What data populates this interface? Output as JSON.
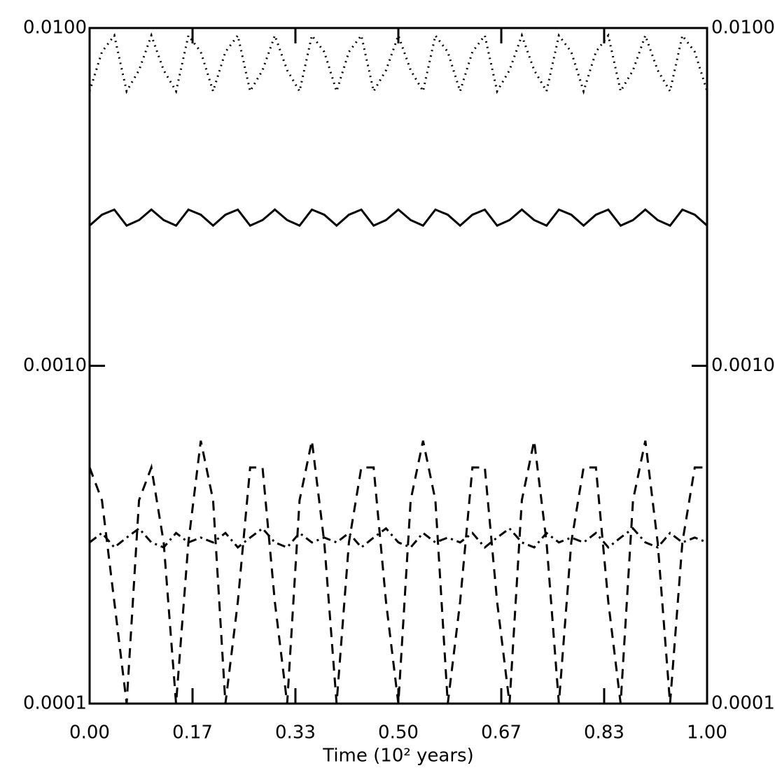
{
  "chart_data": {
    "type": "line",
    "xlabel": "Time (10² years)",
    "x": [
      0,
      0.02,
      0.04,
      0.06,
      0.08,
      0.1,
      0.12,
      0.14,
      0.16,
      0.18,
      0.2,
      0.22,
      0.24,
      0.26,
      0.28,
      0.3,
      0.32,
      0.34,
      0.36,
      0.38,
      0.4,
      0.42,
      0.44,
      0.46,
      0.48,
      0.5,
      0.52,
      0.54,
      0.56,
      0.58,
      0.6,
      0.62,
      0.64,
      0.66,
      0.68,
      0.7,
      0.72,
      0.74,
      0.76,
      0.78,
      0.8,
      0.82,
      0.84,
      0.86,
      0.88,
      0.9,
      0.92,
      0.94,
      0.96,
      0.98,
      1.0
    ],
    "xlim": [
      0,
      1
    ],
    "xticks": [
      {
        "value": 0,
        "label": "0.00"
      },
      {
        "value": 0.1667,
        "label": "0.17"
      },
      {
        "value": 0.3333,
        "label": "0.33"
      },
      {
        "value": 0.5,
        "label": "0.50"
      },
      {
        "value": 0.6667,
        "label": "0.67"
      },
      {
        "value": 0.8333,
        "label": "0.83"
      },
      {
        "value": 1,
        "label": "1.00"
      }
    ],
    "ylim": [
      0.0001,
      0.01
    ],
    "log_y": true,
    "yticks": [
      {
        "value": 0.0001,
        "label": "0.0001"
      },
      {
        "value": 0.001,
        "label": "0.0010"
      },
      {
        "value": 0.01,
        "label": "0.0100"
      }
    ],
    "y2lim": [
      0.0001,
      0.01
    ],
    "y2ticks": [
      {
        "value": 0.0001,
        "label": "0.0001"
      },
      {
        "value": 0.001,
        "label": "0.0010"
      },
      {
        "value": 0.01,
        "label": "0.0100"
      }
    ],
    "series": [
      {
        "color": "#000000",
        "dash": "dotted",
        "values": [
          0.0065,
          0.0085,
          0.0095,
          0.0065,
          0.0075,
          0.0095,
          0.0075,
          0.0065,
          0.0095,
          0.0085,
          0.0065,
          0.0085,
          0.0095,
          0.0065,
          0.0075,
          0.0095,
          0.0075,
          0.0065,
          0.0095,
          0.0085,
          0.0065,
          0.0085,
          0.0095,
          0.0065,
          0.0075,
          0.0095,
          0.0075,
          0.0065,
          0.0095,
          0.0085,
          0.0065,
          0.0085,
          0.0095,
          0.0065,
          0.0075,
          0.0095,
          0.0075,
          0.0065,
          0.0095,
          0.0085,
          0.0065,
          0.0085,
          0.0095,
          0.0065,
          0.0075,
          0.0095,
          0.0075,
          0.0065,
          0.0095,
          0.0085,
          0.0065
        ]
      },
      {
        "color": "#000000",
        "dash": "solid",
        "values": [
          0.0026,
          0.0028,
          0.0029,
          0.0026,
          0.0027,
          0.0029,
          0.0027,
          0.0026,
          0.0029,
          0.0028,
          0.0026,
          0.0028,
          0.0029,
          0.0026,
          0.0027,
          0.0029,
          0.0027,
          0.0026,
          0.0029,
          0.0028,
          0.0026,
          0.0028,
          0.0029,
          0.0026,
          0.0027,
          0.0029,
          0.0027,
          0.0026,
          0.0029,
          0.0028,
          0.0026,
          0.0028,
          0.0029,
          0.0026,
          0.0027,
          0.0029,
          0.0027,
          0.0026,
          0.0029,
          0.0028,
          0.0026,
          0.0028,
          0.0029,
          0.0026,
          0.0027,
          0.0029,
          0.0027,
          0.0026,
          0.0029,
          0.0028,
          0.0026
        ]
      },
      {
        "color": "#000000",
        "dash": "dashed",
        "values": [
          0.0005,
          0.0004,
          0.0002,
          0.0001,
          0.0004,
          0.0005,
          0.0003,
          0.0001,
          0.0003,
          0.0006,
          0.0004,
          0.0001,
          0.0002,
          0.0005,
          0.0005,
          0.0002,
          0.0001,
          0.0004,
          0.0006,
          0.0003,
          0.0001,
          0.0003,
          0.0005,
          0.0005,
          0.0002,
          0.0001,
          0.0004,
          0.0006,
          0.0004,
          0.0001,
          0.0002,
          0.0005,
          0.0005,
          0.0002,
          0.0001,
          0.0004,
          0.0006,
          0.0003,
          0.0001,
          0.0003,
          0.0005,
          0.0005,
          0.0002,
          0.0001,
          0.0004,
          0.0006,
          0.0003,
          0.0001,
          0.0003,
          0.0005,
          0.0005
        ]
      },
      {
        "color": "#000000",
        "dash": "dashdot",
        "values": [
          0.0003,
          0.00032,
          0.00029,
          0.00031,
          0.00033,
          0.0003,
          0.00029,
          0.00032,
          0.0003,
          0.00031,
          0.0003,
          0.00032,
          0.00029,
          0.00031,
          0.00033,
          0.0003,
          0.00029,
          0.00032,
          0.0003,
          0.00031,
          0.0003,
          0.00032,
          0.00029,
          0.00031,
          0.00033,
          0.0003,
          0.00029,
          0.00032,
          0.0003,
          0.00031,
          0.0003,
          0.00032,
          0.00029,
          0.00031,
          0.00033,
          0.0003,
          0.00029,
          0.00032,
          0.0003,
          0.00031,
          0.0003,
          0.00032,
          0.00029,
          0.00031,
          0.00033,
          0.0003,
          0.00029,
          0.00032,
          0.0003,
          0.00031,
          0.0003
        ]
      }
    ]
  }
}
